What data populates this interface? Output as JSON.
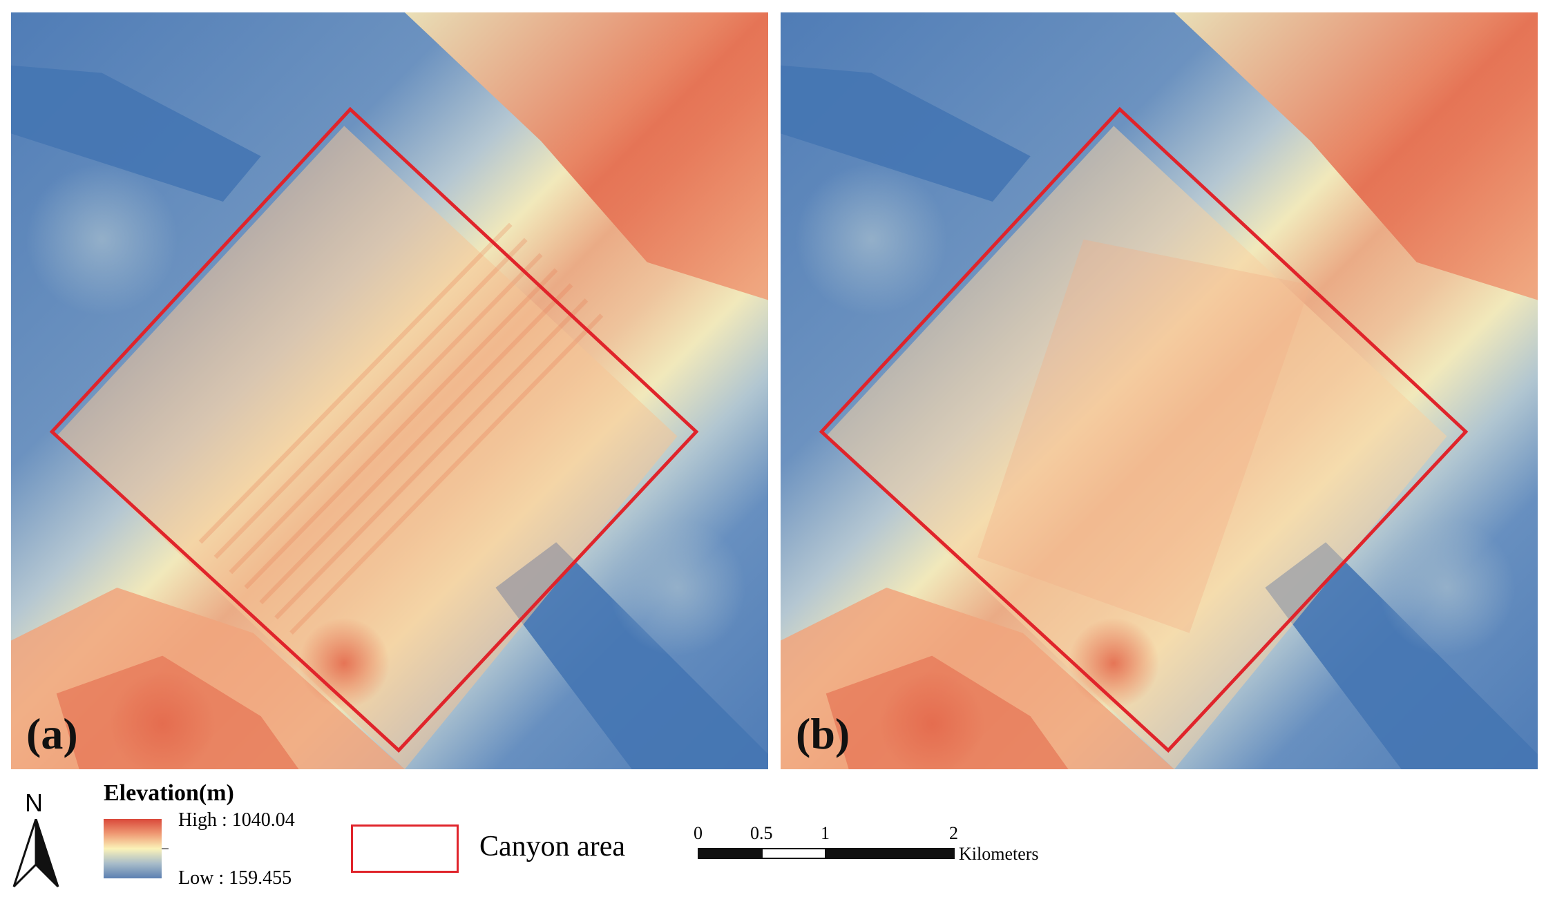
{
  "panels": [
    {
      "id": "a",
      "label": "(a)"
    },
    {
      "id": "b",
      "label": "(b)"
    }
  ],
  "legend": {
    "north_label": "N",
    "elevation_title": "Elevation(m)",
    "high_label": "High : 1040.04",
    "low_label": "Low : 159.455",
    "canyon_label": "Canyon area",
    "scale_ticks": [
      "0",
      "0.5",
      "1",
      "2"
    ],
    "scale_unit": "Kilometers"
  },
  "colors": {
    "high": "#d9483a",
    "mid": "#fbf2b8",
    "low": "#4f7cb6",
    "canyon_outline": "#e0242b"
  }
}
